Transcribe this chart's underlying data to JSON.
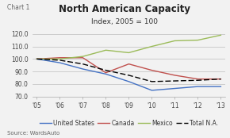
{
  "title": "North American Capacity",
  "subtitle": "Index, 2005 = 100",
  "chart_label": "Chart 1",
  "source": "Source: WardsAuto",
  "years": [
    2005,
    2006,
    2007,
    2008,
    2009,
    2010,
    2011,
    2012,
    2013
  ],
  "x_labels": [
    "'05",
    "'06",
    "'07",
    "'08",
    "'09",
    "'10",
    "'11",
    "'12",
    "'13"
  ],
  "united_states": [
    100.0,
    97.0,
    92.0,
    88.0,
    82.0,
    75.0,
    76.5,
    78.0,
    78.0
  ],
  "canada": [
    100.0,
    101.0,
    101.0,
    89.0,
    96.0,
    91.0,
    87.0,
    84.0,
    84.0
  ],
  "mexico": [
    100.0,
    100.0,
    102.0,
    107.0,
    105.0,
    110.0,
    114.5,
    115.0,
    119.0
  ],
  "total_na": [
    100.0,
    99.0,
    96.0,
    91.0,
    87.0,
    82.0,
    82.5,
    83.0,
    84.0
  ],
  "ylim": [
    70.0,
    125.0
  ],
  "yticks": [
    70.0,
    80.0,
    90.0,
    100.0,
    110.0,
    120.0
  ],
  "color_us": "#4472C4",
  "color_canada": "#C0504D",
  "color_mexico": "#9BBB59",
  "color_total": "#000000",
  "bg_color": "#F2F2F2",
  "grid_color": "#BEBEBE",
  "title_fontsize": 8.5,
  "subtitle_fontsize": 6.5,
  "label_fontsize": 5.5,
  "tick_fontsize": 5.5,
  "legend_fontsize": 5.5,
  "source_fontsize": 5.0
}
